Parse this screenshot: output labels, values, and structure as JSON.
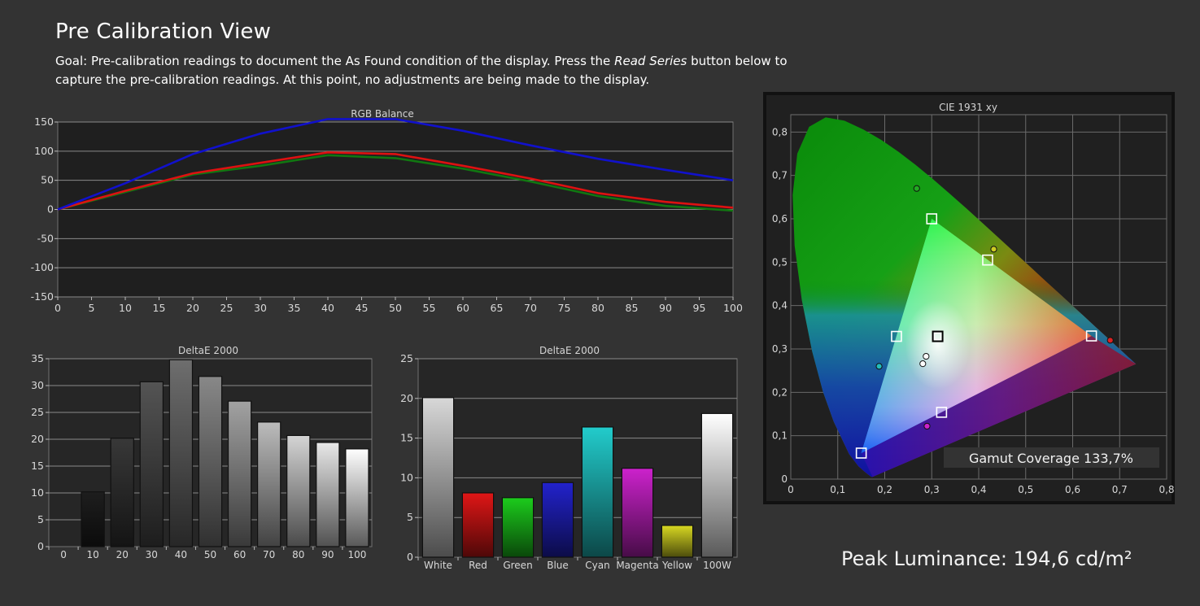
{
  "header": {
    "title": "Pre Calibration View",
    "goal_prefix": "Goal: Pre-calibration readings to document the As Found condition of the display. Press the ",
    "goal_em": "Read Series",
    "goal_suffix": " button below to capture the pre-calibration readings. At this point, no adjustments are being made to the display."
  },
  "peak_luminance": "Peak Luminance: 194,6 cd/m²",
  "colors": {
    "background": "#333333",
    "plot_bg": "#1f1f1f",
    "red": "#dd1111",
    "green": "#117711",
    "blue": "#1111cc"
  },
  "chart_data": [
    {
      "type": "line",
      "title": "RGB Balance",
      "x": [
        0,
        10,
        20,
        30,
        40,
        50,
        60,
        70,
        80,
        90,
        100
      ],
      "xticks": [
        "0",
        "5",
        "10",
        "15",
        "20",
        "25",
        "30",
        "35",
        "40",
        "45",
        "50",
        "55",
        "60",
        "65",
        "70",
        "75",
        "80",
        "85",
        "90",
        "95",
        "100"
      ],
      "yticks": [
        "150",
        "100",
        "50",
        "0",
        "-50",
        "-100",
        "-150"
      ],
      "ylim": [
        -150,
        150
      ],
      "xlim": [
        0,
        100
      ],
      "grid": true,
      "series": [
        {
          "color": "#1111cc",
          "values": [
            0,
            45,
            95,
            130,
            155,
            155,
            135,
            110,
            87,
            68,
            50
          ]
        },
        {
          "color": "#dd1111",
          "values": [
            0,
            32,
            62,
            80,
            98,
            95,
            75,
            53,
            28,
            13,
            3
          ]
        },
        {
          "color": "#117711",
          "values": [
            0,
            30,
            60,
            75,
            93,
            88,
            70,
            48,
            23,
            6,
            -2
          ]
        }
      ]
    },
    {
      "type": "bar",
      "title": "DeltaE 2000",
      "categories": [
        "0",
        "10",
        "20",
        "30",
        "40",
        "50",
        "60",
        "70",
        "80",
        "90",
        "100"
      ],
      "values": [
        0,
        10.2,
        20.2,
        30.7,
        34.8,
        31.7,
        27.1,
        23.2,
        20.7,
        19.4,
        18.2
      ],
      "fills": [
        "#000000",
        "#1e1e1e",
        "#383838",
        "#545454",
        "#6e6e6e",
        "#888888",
        "#a2a2a2",
        "#bcbcbc",
        "#d4d4d4",
        "#e8e8e8",
        "#ffffff"
      ],
      "yticks": [
        "35",
        "30",
        "25",
        "20",
        "15",
        "10",
        "5",
        "0"
      ],
      "ylim": [
        0,
        35
      ],
      "grid": true
    },
    {
      "type": "bar",
      "title": "DeltaE 2000",
      "categories": [
        "White",
        "Red",
        "Green",
        "Blue",
        "Cyan",
        "Magenta",
        "Yellow",
        "100W"
      ],
      "values": [
        20.1,
        8.1,
        7.5,
        9.4,
        16.4,
        11.2,
        4.0,
        18.1
      ],
      "fills": [
        "#d8d8d8",
        "#e01616",
        "#1ccc1c",
        "#2222cc",
        "#22cccc",
        "#cc22cc",
        "#d8d822",
        "#ffffff"
      ],
      "yticks": [
        "25",
        "20",
        "15",
        "10",
        "5",
        "0"
      ],
      "ylim": [
        0,
        25
      ],
      "grid": true
    },
    {
      "type": "scatter",
      "title": "CIE 1931 xy",
      "xticks": [
        "0",
        "0,1",
        "0,2",
        "0,3",
        "0,4",
        "0,5",
        "0,6",
        "0,7",
        "0,8"
      ],
      "yticks": [
        "0,8",
        "0,7",
        "0,6",
        "0,5",
        "0,4",
        "0,3",
        "0,2",
        "0,1",
        "0"
      ],
      "xlim": [
        0,
        0.8
      ],
      "ylim": [
        0,
        0.84
      ],
      "gamut_coverage": "Gamut Coverage 133,7%",
      "targets": [
        {
          "x": 0.64,
          "y": 0.33
        },
        {
          "x": 0.3,
          "y": 0.6
        },
        {
          "x": 0.15,
          "y": 0.06
        },
        {
          "x": 0.225,
          "y": 0.329
        },
        {
          "x": 0.321,
          "y": 0.154
        },
        {
          "x": 0.419,
          "y": 0.505
        },
        {
          "x": 0.3127,
          "y": 0.329
        }
      ],
      "measured": [
        {
          "x": 0.68,
          "y": 0.32,
          "color": "#dd2222"
        },
        {
          "x": 0.268,
          "y": 0.67,
          "color": "#22aa22"
        },
        {
          "x": 0.188,
          "y": 0.26,
          "color": "#22bbbb"
        },
        {
          "x": 0.29,
          "y": 0.122,
          "color": "#cc22cc"
        },
        {
          "x": 0.432,
          "y": 0.53,
          "color": "#cccc22"
        },
        {
          "x": 0.288,
          "y": 0.283,
          "color": "#ffffff"
        },
        {
          "x": 0.281,
          "y": 0.266,
          "color": "#ffffff"
        }
      ]
    }
  ]
}
